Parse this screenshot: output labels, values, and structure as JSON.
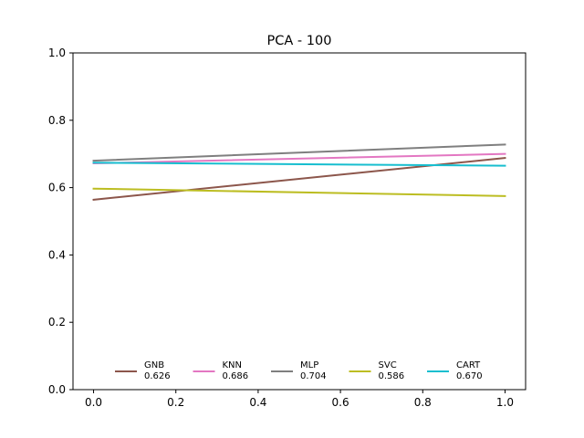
{
  "chart_data": {
    "type": "line",
    "title": "PCA - 100",
    "xlabel": "",
    "ylabel": "",
    "xlim": [
      -0.05,
      1.05
    ],
    "ylim": [
      0.0,
      1.0
    ],
    "x_ticks": [
      "0.0",
      "0.2",
      "0.4",
      "0.6",
      "0.8",
      "1.0"
    ],
    "y_ticks": [
      "0.0",
      "0.2",
      "0.4",
      "0.6",
      "0.8",
      "1.0"
    ],
    "grid": false,
    "legend_position": "lower center",
    "series": [
      {
        "name": "GNB",
        "score": "0.626",
        "color": "#8c564b",
        "x": [
          0.0,
          1.0
        ],
        "y": [
          0.564,
          0.688
        ]
      },
      {
        "name": "KNN",
        "score": "0.686",
        "color": "#e377c2",
        "x": [
          0.0,
          1.0
        ],
        "y": [
          0.672,
          0.7
        ]
      },
      {
        "name": "MLP",
        "score": "0.704",
        "color": "#7f7f7f",
        "x": [
          0.0,
          1.0
        ],
        "y": [
          0.68,
          0.728
        ]
      },
      {
        "name": "SVC",
        "score": "0.586",
        "color": "#bcbd22",
        "x": [
          0.0,
          1.0
        ],
        "y": [
          0.597,
          0.575
        ]
      },
      {
        "name": "CART",
        "score": "0.670",
        "color": "#17becf",
        "x": [
          0.0,
          1.0
        ],
        "y": [
          0.674,
          0.665
        ]
      }
    ]
  }
}
